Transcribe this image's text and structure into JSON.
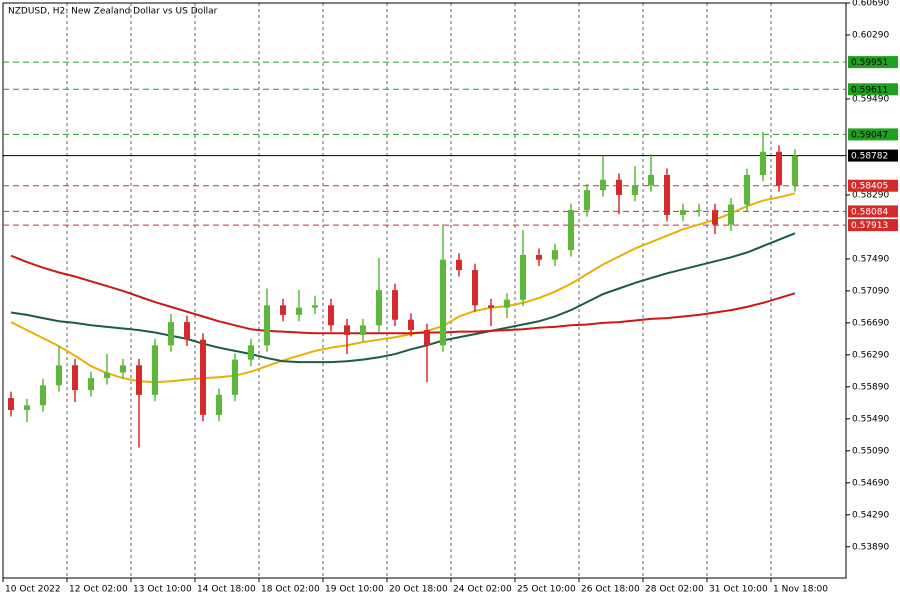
{
  "chart_data": {
    "type": "candlestick",
    "title": "NZDUSD, H2:  New Zealand Dollar vs US Dollar",
    "categories": [
      "10 Oct 2022",
      null,
      null,
      null,
      "12 Oct 02:00",
      null,
      null,
      null,
      "13 Oct 10:00",
      null,
      null,
      null,
      "14 Oct 18:00",
      null,
      null,
      null,
      "18 Oct 02:00",
      null,
      null,
      null,
      "19 Oct 10:00",
      null,
      null,
      null,
      "20 Oct 18:00",
      null,
      null,
      null,
      "24 Oct 02:00",
      null,
      null,
      null,
      "25 Oct 10:00",
      null,
      null,
      null,
      "26 Oct 18:00",
      null,
      null,
      null,
      "28 Oct 02:00",
      null,
      null,
      null,
      "31 Oct 10:00",
      null,
      null,
      null,
      "1 Nov 18:00",
      null
    ],
    "open": [
      0.5575,
      0.556,
      0.5566,
      0.5591,
      0.5616,
      0.5585,
      0.56,
      0.5607,
      0.5616,
      0.5579,
      0.5641,
      0.567,
      0.5648,
      0.5554,
      0.5579,
      0.5623,
      0.5641,
      0.5691,
      0.5679,
      0.5688,
      0.5691,
      0.5666,
      0.5654,
      0.5666,
      0.571,
      0.5673,
      0.566,
      0.5641,
      0.5748,
      0.5735,
      0.5691,
      0.5688,
      0.5698,
      0.5754,
      0.5748,
      0.576,
      0.581,
      0.5835,
      0.5848,
      0.5829,
      0.5841,
      0.5854,
      0.5804,
      0.581,
      0.581,
      0.5792,
      0.5817,
      0.5854,
      0.5883,
      0.5841
    ],
    "high": [
      0.5583,
      0.5574,
      0.5599,
      0.564,
      0.5624,
      0.5608,
      0.563,
      0.5624,
      0.5624,
      0.5649,
      0.568,
      0.5678,
      0.5656,
      0.5587,
      0.5631,
      0.5649,
      0.5712,
      0.5699,
      0.571,
      0.5703,
      0.5699,
      0.5674,
      0.5674,
      0.575,
      0.5718,
      0.5681,
      0.5668,
      0.5792,
      0.5756,
      0.5743,
      0.5699,
      0.5706,
      0.5785,
      0.5762,
      0.5768,
      0.5818,
      0.5843,
      0.5878,
      0.5856,
      0.5865,
      0.588,
      0.5862,
      0.5818,
      0.5818,
      0.5818,
      0.5825,
      0.5862,
      0.5908,
      0.5891,
      0.5886
    ],
    "low": [
      0.5552,
      0.5545,
      0.5558,
      0.5583,
      0.557,
      0.5577,
      0.5592,
      0.5599,
      0.5513,
      0.5571,
      0.5633,
      0.564,
      0.5546,
      0.5546,
      0.5571,
      0.5615,
      0.5633,
      0.5671,
      0.5671,
      0.568,
      0.5658,
      0.563,
      0.5646,
      0.5658,
      0.5665,
      0.5652,
      0.5595,
      0.5633,
      0.5727,
      0.5683,
      0.5665,
      0.5675,
      0.569,
      0.574,
      0.574,
      0.5752,
      0.5802,
      0.5827,
      0.5805,
      0.5821,
      0.5833,
      0.5796,
      0.5796,
      0.5802,
      0.578,
      0.5784,
      0.5809,
      0.5846,
      0.5833,
      0.5833
    ],
    "close": [
      0.556,
      0.5566,
      0.5591,
      0.5616,
      0.5585,
      0.56,
      0.5607,
      0.5616,
      0.5579,
      0.5641,
      0.567,
      0.5648,
      0.5554,
      0.5579,
      0.5623,
      0.5641,
      0.5691,
      0.5679,
      0.5688,
      0.5691,
      0.5666,
      0.5654,
      0.5666,
      0.571,
      0.5673,
      0.566,
      0.5641,
      0.5748,
      0.5735,
      0.5691,
      0.5688,
      0.5698,
      0.5754,
      0.5748,
      0.576,
      0.581,
      0.5835,
      0.5848,
      0.5829,
      0.5841,
      0.5854,
      0.5804,
      0.581,
      0.581,
      0.5792,
      0.5817,
      0.5854,
      0.5883,
      0.5841,
      0.5878
    ],
    "up_color": "#5cb83a",
    "down_color": "#d42a2a",
    "series": [
      {
        "color": "#e8b000",
        "values": [
          0.567,
          0.566,
          0.565,
          0.564,
          0.5628,
          0.5615,
          0.5606,
          0.56,
          0.5596,
          0.5595,
          0.5596,
          0.5598,
          0.56,
          0.5601,
          0.5603,
          0.5608,
          0.5615,
          0.5622,
          0.5628,
          0.5634,
          0.5638,
          0.5641,
          0.5645,
          0.5648,
          0.5651,
          0.5655,
          0.5659,
          0.5665,
          0.5677,
          0.5684,
          0.5688,
          0.569,
          0.5694,
          0.57,
          0.5708,
          0.5718,
          0.573,
          0.5742,
          0.5752,
          0.5762,
          0.577,
          0.5778,
          0.5786,
          0.5792,
          0.5798,
          0.5806,
          0.5815,
          0.5822,
          0.5826,
          0.5831
        ]
      },
      {
        "color": "#1a5c45",
        "values": [
          0.5682,
          0.5679,
          0.5675,
          0.5671,
          0.5669,
          0.5666,
          0.5664,
          0.5662,
          0.566,
          0.5657,
          0.5653,
          0.5649,
          0.5643,
          0.5638,
          0.5634,
          0.563,
          0.5625,
          0.5621,
          0.562,
          0.562,
          0.562,
          0.5621,
          0.5623,
          0.5626,
          0.563,
          0.5636,
          0.5641,
          0.5647,
          0.5651,
          0.5655,
          0.5659,
          0.5663,
          0.5667,
          0.5671,
          0.5677,
          0.5685,
          0.5695,
          0.5705,
          0.5712,
          0.5719,
          0.5725,
          0.5731,
          0.5736,
          0.5741,
          0.5746,
          0.5751,
          0.5757,
          0.5765,
          0.5773,
          0.5781
        ]
      },
      {
        "color": "#cc1818",
        "values": [
          0.5753,
          0.5745,
          0.5738,
          0.5732,
          0.5727,
          0.5721,
          0.5715,
          0.5709,
          0.5702,
          0.5695,
          0.5689,
          0.5683,
          0.5677,
          0.5671,
          0.5666,
          0.5661,
          0.5659,
          0.5658,
          0.5657,
          0.5656,
          0.5656,
          0.5656,
          0.5656,
          0.5656,
          0.5656,
          0.5656,
          0.5657,
          0.5657,
          0.5658,
          0.5658,
          0.5659,
          0.566,
          0.5661,
          0.5663,
          0.5664,
          0.5666,
          0.5667,
          0.5669,
          0.567,
          0.5672,
          0.5674,
          0.5675,
          0.5677,
          0.5679,
          0.5682,
          0.5685,
          0.5689,
          0.5694,
          0.57,
          0.5706
        ]
      }
    ],
    "levels": [
      {
        "value": 0.59951,
        "color": "#1fa01f",
        "style": "dashed"
      },
      {
        "value": 0.59611,
        "color": "#1fa01f",
        "style": "dashed"
      },
      {
        "value": 0.59047,
        "color": "#1fa01f",
        "style": "dashed"
      },
      {
        "value": 0.58782,
        "color": "#000000",
        "style": "solid"
      },
      {
        "value": 0.58405,
        "color": "#d42a2a",
        "style": "dashed"
      },
      {
        "value": 0.58084,
        "color": "#d42a2a",
        "style": "dashed"
      },
      {
        "value": 0.57913,
        "color": "#d42a2a",
        "style": "dashed"
      }
    ],
    "ylim": [
      0.535,
      0.6069
    ],
    "yticks": [
      {
        "value": 0.6069,
        "label": "0.60690"
      },
      {
        "value": 0.6029,
        "label": "0.60290"
      },
      {
        "value": 0.5949,
        "label": "0.59490"
      },
      {
        "value": 0.5829,
        "label": "0.58290"
      },
      {
        "value": 0.5749,
        "label": "0.57490"
      },
      {
        "value": 0.5709,
        "label": "0.57090"
      },
      {
        "value": 0.5669,
        "label": "0.56690"
      },
      {
        "value": 0.5629,
        "label": "0.56290"
      },
      {
        "value": 0.5589,
        "label": "0.55890"
      },
      {
        "value": 0.5549,
        "label": "0.55490"
      },
      {
        "value": 0.5509,
        "label": "0.55090"
      },
      {
        "value": 0.5469,
        "label": "0.54690"
      },
      {
        "value": 0.5429,
        "label": "0.54290"
      },
      {
        "value": 0.5389,
        "label": "0.53890"
      }
    ],
    "grid": true
  }
}
